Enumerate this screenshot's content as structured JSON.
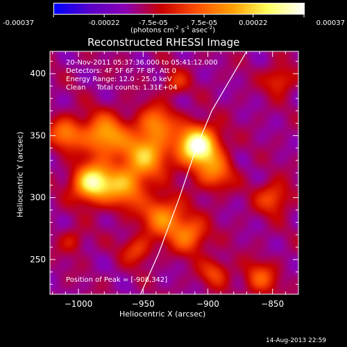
{
  "colors": {
    "background": "#000000",
    "foreground": "#ffffff",
    "colormap": [
      "#0000ff",
      "#5a00c8",
      "#8b00b4",
      "#c80000",
      "#ff5000",
      "#ffa000",
      "#ffff60",
      "#ffffff"
    ]
  },
  "colorbar": {
    "ticks": [
      "-0.00037",
      "-0.00022",
      "-7.5e-05",
      "7.5e-05",
      "0.00022",
      "0.00037"
    ],
    "tick_values": [
      -0.00037,
      -0.00022,
      -7.5e-05,
      7.5e-05,
      0.00022,
      0.00037
    ],
    "units_main": "(photons cm",
    "units_exp1": "-2",
    "units_mid1": " s",
    "units_exp2": "-1",
    "units_mid2": " asec",
    "units_exp3": "-2",
    "units_end": ")"
  },
  "annotations": {
    "line1": "20-Nov-2011 05:37:36.000 to 05:41:12.000",
    "line2": "Detectors: 4F 5F 6F 7F 8F, Att 0",
    "line3": "Energy Range: 12.0 - 25.0 keV",
    "line4": "Clean     Total counts: 1.31E+04",
    "peak": "Position of Peak = [-908,342]"
  },
  "footer": {
    "timestamp": "14-Aug-2013 22:59"
  },
  "chart_data": {
    "type": "heatmap",
    "title": "Reconstructed RHESSI Image",
    "xlabel": "Heliocentric X (arcsec)",
    "ylabel": "Heliocentric Y (arcsec)",
    "xlim": [
      -1022,
      -830
    ],
    "ylim": [
      222,
      418
    ],
    "x_ticks": [
      -1000,
      -950,
      -900,
      -850
    ],
    "x_tick_labels": [
      "−1000",
      "−950",
      "−900",
      "−850"
    ],
    "y_ticks": [
      250,
      300,
      350,
      400
    ],
    "y_tick_labels": [
      "250",
      "300",
      "350",
      "400"
    ],
    "value_range": [
      -0.00037,
      0.00037
    ],
    "peak": [
      -908,
      342
    ],
    "sources": [
      {
        "x": -908,
        "y": 342,
        "r": 11,
        "a": 1.0
      },
      {
        "x": -990,
        "y": 312,
        "r": 10,
        "a": 0.85
      },
      {
        "x": -965,
        "y": 310,
        "r": 12,
        "a": 0.55
      },
      {
        "x": -948,
        "y": 335,
        "r": 12,
        "a": 0.6
      },
      {
        "x": -980,
        "y": 350,
        "r": 12,
        "a": 0.6
      },
      {
        "x": -1010,
        "y": 352,
        "r": 9,
        "a": 0.45
      },
      {
        "x": -940,
        "y": 360,
        "r": 10,
        "a": 0.45
      },
      {
        "x": -895,
        "y": 320,
        "r": 10,
        "a": 0.4
      },
      {
        "x": -935,
        "y": 285,
        "r": 11,
        "a": 0.5
      },
      {
        "x": -915,
        "y": 270,
        "r": 10,
        "a": 0.45
      },
      {
        "x": -955,
        "y": 258,
        "r": 8,
        "a": 0.3
      },
      {
        "x": -850,
        "y": 300,
        "r": 9,
        "a": 0.35
      },
      {
        "x": -860,
        "y": 235,
        "r": 9,
        "a": 0.35
      },
      {
        "x": -845,
        "y": 395,
        "r": 8,
        "a": 0.3
      },
      {
        "x": -925,
        "y": 393,
        "r": 7,
        "a": 0.25
      },
      {
        "x": -895,
        "y": 240,
        "r": 8,
        "a": 0.3
      },
      {
        "x": -1005,
        "y": 265,
        "r": 7,
        "a": 0.2
      }
    ],
    "limb": [
      [
        -952,
        222
      ],
      [
        -938,
        255
      ],
      [
        -922,
        300
      ],
      [
        -909,
        340
      ],
      [
        -897,
        370
      ],
      [
        -870,
        418
      ]
    ]
  }
}
